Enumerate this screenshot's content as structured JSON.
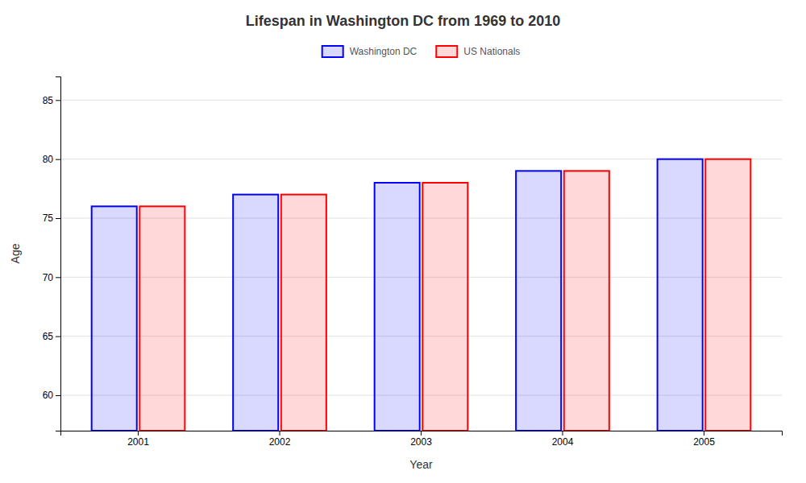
{
  "chart_data": {
    "type": "bar",
    "title": "Lifespan in Washington DC from 1969 to 2010",
    "xlabel": "Year",
    "ylabel": "Age",
    "categories": [
      "2001",
      "2002",
      "2003",
      "2004",
      "2005"
    ],
    "series": [
      {
        "name": "Washington DC",
        "color": "#0000ff",
        "values": [
          76,
          77,
          78,
          79,
          80
        ]
      },
      {
        "name": "US Nationals",
        "color": "#ff0000",
        "values": [
          76,
          77,
          78,
          79,
          80
        ]
      }
    ],
    "ylim": [
      57,
      87
    ],
    "yticks": [
      60,
      65,
      70,
      75,
      80,
      85
    ],
    "grid": true,
    "legend": "top"
  }
}
